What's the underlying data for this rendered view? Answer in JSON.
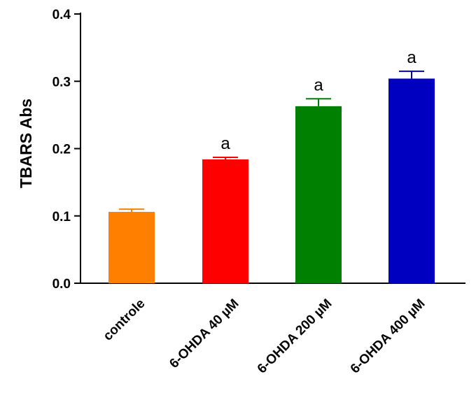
{
  "chart_data": {
    "type": "bar",
    "title": "",
    "xlabel": "",
    "ylabel": "TBARS Abs",
    "ylim": [
      0,
      0.4
    ],
    "yticks": [
      "0.0",
      "0.1",
      "0.2",
      "0.3",
      "0.4"
    ],
    "yticks_values": [
      0,
      0.1,
      0.2,
      0.3,
      0.4
    ],
    "grid": false,
    "categories": [
      "controle",
      "6-OHDA 40 µM",
      "6-OHDA 200 µM",
      "6-OHDA 400 µM"
    ],
    "values": [
      0.106,
      0.184,
      0.263,
      0.304
    ],
    "errors": [
      0.004,
      0.003,
      0.011,
      0.011
    ],
    "annotations": [
      "",
      "a",
      "a",
      "a"
    ],
    "colors": [
      "#ff8000",
      "#ff0000",
      "#008000",
      "#0000c0"
    ]
  }
}
